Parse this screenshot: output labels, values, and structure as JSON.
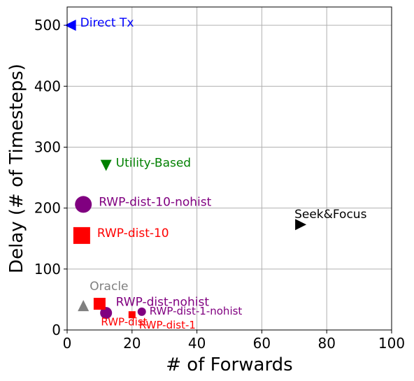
{
  "chart_data": {
    "type": "scatter",
    "title": "",
    "xlabel": "# of Forwards",
    "ylabel": "Delay (# of Timesteps)",
    "xlim": [
      0,
      100
    ],
    "ylim": [
      0,
      530
    ],
    "x_ticks": [
      0,
      20,
      40,
      60,
      80,
      100
    ],
    "y_ticks": [
      0,
      100,
      200,
      300,
      400,
      500
    ],
    "grid": true,
    "points": [
      {
        "label": "Direct Tx",
        "x": 1,
        "y": 500,
        "marker": "triangle-left",
        "color": "#0000ff",
        "label_dx": 2,
        "label_dy": 4
      },
      {
        "label": "Utility-Based",
        "x": 12,
        "y": 270,
        "marker": "triangle-down",
        "color": "#008000",
        "label_dx": 2,
        "label_dy": 4
      },
      {
        "label": "RWP-dist-10-nohist",
        "x": 5,
        "y": 206,
        "marker": "circle",
        "color": "#800080",
        "label_dx": 4,
        "label_dy": 4
      },
      {
        "label": "RWP-dist-10",
        "x": 4.5,
        "y": 155,
        "marker": "square",
        "color": "#ff0000",
        "label_dx": 4,
        "label_dy": 4
      },
      {
        "label": "Seek&Focus",
        "x": 72,
        "y": 173,
        "marker": "triangle-right",
        "color": "#000000",
        "label_dx": -21,
        "label_dy": 15
      },
      {
        "label": "Oracle",
        "x": 5,
        "y": 40,
        "marker": "triangle-up",
        "color": "#808080",
        "label_dx": -3,
        "label_dy": 28
      },
      {
        "label": "RWP-dist-nohist",
        "x": 12,
        "y": 28,
        "marker": "circle-sm",
        "color": "#800080",
        "label_dx": 2,
        "label_dy": 16
      },
      {
        "label": "RWP-dist",
        "x": 10,
        "y": 43,
        "marker": "square-sm",
        "color": "#ff0000",
        "label_dx": -10,
        "label_dy": -25
      },
      {
        "label": "RWP-dist-1-nohist",
        "x": 23,
        "y": 30,
        "marker": "circle-xs",
        "color": "#800080",
        "label_dx": 2,
        "label_dy": 2
      },
      {
        "label": "RWP-dist-1",
        "x": 20,
        "y": 25,
        "marker": "square-xs",
        "color": "#ff0000",
        "label_dx": 2,
        "label_dy": -14
      }
    ]
  }
}
